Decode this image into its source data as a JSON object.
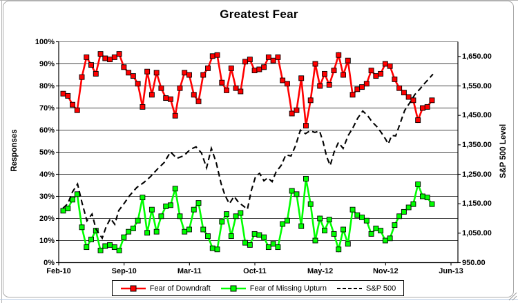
{
  "window": {
    "frame_border_color": "#A9A9A9",
    "sheet_edge_color": "#B3B3B3",
    "sheet_gridline_color": "#B9CDE5"
  },
  "chart_data": {
    "type": "line",
    "title": "Greatest Fear",
    "ylabel_left": "Responses",
    "ylabel_right": "S&P 500 Level",
    "legend_position": "bottom",
    "grid": "horizontal",
    "x_tick_labels": [
      "Feb-10",
      "Sep-10",
      "Mar-11",
      "Oct-11",
      "May-12",
      "Nov-12",
      "Jun-13"
    ],
    "y_left": {
      "min": 0,
      "max": 100,
      "tick_step": 10,
      "tick_labels": [
        "0%",
        "10%",
        "20%",
        "30%",
        "40%",
        "50%",
        "60%",
        "70%",
        "80%",
        "90%",
        "100%"
      ]
    },
    "y_right": {
      "min": 950,
      "max": 1700,
      "tick_step": 100,
      "tick_labels": [
        "950.00",
        "1,050.00",
        "1,150.00",
        "1,250.00",
        "1,350.00",
        "1,450.00",
        "1,550.00",
        "1,650.00"
      ]
    },
    "colors": {
      "fear_of_downdraft": "#FF0000",
      "fear_of_missing_upturn": "#00FF00",
      "sp500": "#000000",
      "gridline": "#000000",
      "plot_top_border": "#808080",
      "legend_border": "#000000"
    },
    "series_x": {
      "start_frac": 0.0114,
      "step_frac": 0.0119
    },
    "series": [
      {
        "name": "Fear of Downdraft",
        "axis": "left",
        "color": "#FF0000",
        "marker": "square",
        "line_style": "solid",
        "values_pct": [
          76.5,
          75.5,
          71.5,
          69,
          84,
          93,
          89.5,
          85.5,
          94.5,
          92.5,
          92,
          93,
          94.5,
          88.5,
          86,
          84.5,
          81,
          70.5,
          86.5,
          76,
          86,
          79,
          74.5,
          74,
          66.5,
          79,
          86,
          85,
          76,
          73,
          85,
          88,
          93.5,
          94,
          81.5,
          78,
          88,
          79,
          77.5,
          91,
          92,
          87,
          87.5,
          88.5,
          93,
          91.5,
          93,
          82.5,
          81,
          67.5,
          69,
          83.5,
          62,
          73.5,
          90,
          80,
          85.5,
          80.5,
          87,
          94,
          85,
          91.5,
          76,
          78.5,
          79.5,
          81,
          87,
          84.5,
          85.5,
          90,
          89,
          83,
          79,
          77,
          75,
          73.5,
          64.5,
          70,
          70.5,
          73.5
        ]
      },
      {
        "name": "Fear of Missing Upturn",
        "axis": "left",
        "color": "#00FF00",
        "marker": "square",
        "line_style": "solid",
        "values_pct": [
          23.5,
          24.5,
          28.5,
          31,
          16,
          7,
          10.5,
          14.5,
          5.5,
          7.5,
          8,
          7,
          5.5,
          11.5,
          14,
          15.5,
          19,
          29.5,
          13.5,
          24,
          14,
          21,
          25.5,
          26,
          33.5,
          21,
          14,
          15,
          24,
          27,
          15,
          12,
          6.5,
          6,
          18.5,
          22,
          12,
          21,
          22.5,
          9,
          8,
          13,
          12.5,
          11.5,
          7,
          8.5,
          7,
          17.5,
          19,
          32.5,
          31,
          16.5,
          38,
          26.5,
          10,
          20,
          14.5,
          19.5,
          13,
          6,
          15,
          8.5,
          24,
          21.5,
          20.5,
          19,
          13,
          15.5,
          14.5,
          10,
          11,
          17,
          21,
          23,
          25,
          26.5,
          35.5,
          30,
          29.5,
          26.5
        ]
      },
      {
        "name": "S&P 500",
        "axis": "right",
        "color": "#000000",
        "marker": "none",
        "line_style": "dashed",
        "points": [
          [
            0.011,
            1135
          ],
          [
            0.023,
            1150
          ],
          [
            0.035,
            1190
          ],
          [
            0.048,
            1217
          ],
          [
            0.06,
            1150
          ],
          [
            0.072,
            1092
          ],
          [
            0.085,
            1115
          ],
          [
            0.095,
            1064
          ],
          [
            0.111,
            1033
          ],
          [
            0.121,
            1072
          ],
          [
            0.132,
            1100
          ],
          [
            0.143,
            1080
          ],
          [
            0.153,
            1127
          ],
          [
            0.164,
            1146
          ],
          [
            0.181,
            1178
          ],
          [
            0.199,
            1205
          ],
          [
            0.217,
            1222
          ],
          [
            0.234,
            1242
          ],
          [
            0.252,
            1268
          ],
          [
            0.269,
            1290
          ],
          [
            0.285,
            1326
          ],
          [
            0.301,
            1304
          ],
          [
            0.319,
            1313
          ],
          [
            0.336,
            1335
          ],
          [
            0.35,
            1343
          ],
          [
            0.364,
            1322
          ],
          [
            0.377,
            1272
          ],
          [
            0.389,
            1338
          ],
          [
            0.401,
            1292
          ],
          [
            0.414,
            1218
          ],
          [
            0.424,
            1178
          ],
          [
            0.435,
            1150
          ],
          [
            0.447,
            1175
          ],
          [
            0.459,
            1154
          ],
          [
            0.47,
            1143
          ],
          [
            0.481,
            1131
          ],
          [
            0.491,
            1195
          ],
          [
            0.502,
            1243
          ],
          [
            0.512,
            1253
          ],
          [
            0.523,
            1228
          ],
          [
            0.533,
            1238
          ],
          [
            0.544,
            1225
          ],
          [
            0.554,
            1258
          ],
          [
            0.567,
            1280
          ],
          [
            0.579,
            1316
          ],
          [
            0.592,
            1312
          ],
          [
            0.604,
            1348
          ],
          [
            0.616,
            1400
          ],
          [
            0.629,
            1388
          ],
          [
            0.641,
            1398
          ],
          [
            0.653,
            1392
          ],
          [
            0.665,
            1397
          ],
          [
            0.674,
            1360
          ],
          [
            0.683,
            1310
          ],
          [
            0.692,
            1280
          ],
          [
            0.702,
            1325
          ],
          [
            0.713,
            1358
          ],
          [
            0.725,
            1338
          ],
          [
            0.738,
            1382
          ],
          [
            0.75,
            1408
          ],
          [
            0.762,
            1440
          ],
          [
            0.775,
            1465
          ],
          [
            0.787,
            1450
          ],
          [
            0.799,
            1428
          ],
          [
            0.811,
            1412
          ],
          [
            0.822,
            1392
          ],
          [
            0.833,
            1370
          ],
          [
            0.84,
            1353
          ],
          [
            0.849,
            1382
          ],
          [
            0.859,
            1380
          ],
          [
            0.87,
            1422
          ],
          [
            0.882,
            1467
          ],
          [
            0.896,
            1495
          ],
          [
            0.908,
            1521
          ],
          [
            0.921,
            1540
          ],
          [
            0.931,
            1556
          ],
          [
            0.942,
            1572
          ],
          [
            0.954,
            1590
          ]
        ]
      }
    ]
  }
}
